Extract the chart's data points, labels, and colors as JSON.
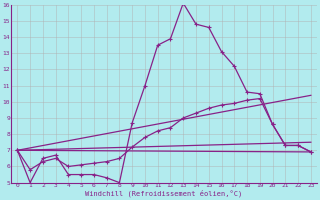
{
  "xlabel": "Windchill (Refroidissement éolien,°C)",
  "background_color": "#b2ebee",
  "line_color": "#882288",
  "grid_color": "#b0b0b0",
  "xlim": [
    -0.5,
    23.5
  ],
  "ylim": [
    5,
    16
  ],
  "yticks": [
    5,
    6,
    7,
    8,
    9,
    10,
    11,
    12,
    13,
    14,
    15,
    16
  ],
  "xticks": [
    0,
    1,
    2,
    3,
    4,
    5,
    6,
    7,
    8,
    9,
    10,
    11,
    12,
    13,
    14,
    15,
    16,
    17,
    18,
    19,
    20,
    21,
    22,
    23
  ],
  "series_main": {
    "x": [
      0,
      1,
      2,
      3,
      4,
      5,
      6,
      7,
      8,
      9,
      10,
      11,
      12,
      13,
      14,
      15,
      16,
      17,
      18,
      19,
      20,
      21,
      22,
      23
    ],
    "y": [
      7.0,
      5.0,
      6.5,
      6.7,
      5.5,
      5.5,
      5.5,
      5.3,
      5.0,
      8.7,
      11.0,
      13.5,
      13.9,
      16.1,
      14.8,
      14.6,
      13.1,
      12.2,
      10.6,
      10.5,
      8.6,
      7.3,
      7.3,
      6.9
    ]
  },
  "series_line1": {
    "x": [
      0,
      23
    ],
    "y": [
      7.0,
      6.9
    ]
  },
  "series_line2": {
    "x": [
      0,
      23
    ],
    "y": [
      7.0,
      7.5
    ]
  },
  "series_line3": {
    "x": [
      0,
      23
    ],
    "y": [
      7.0,
      10.4
    ]
  },
  "series_smooth": {
    "x": [
      0,
      1,
      2,
      3,
      4,
      5,
      6,
      7,
      8,
      9,
      10,
      11,
      12,
      13,
      14,
      15,
      16,
      17,
      18,
      19,
      20,
      21,
      22,
      23
    ],
    "y": [
      7.0,
      5.8,
      6.3,
      6.5,
      6.0,
      6.1,
      6.2,
      6.3,
      6.5,
      7.2,
      7.8,
      8.2,
      8.4,
      9.0,
      9.3,
      9.6,
      9.8,
      9.9,
      10.1,
      10.2,
      8.6,
      7.3,
      7.3,
      6.9
    ]
  }
}
